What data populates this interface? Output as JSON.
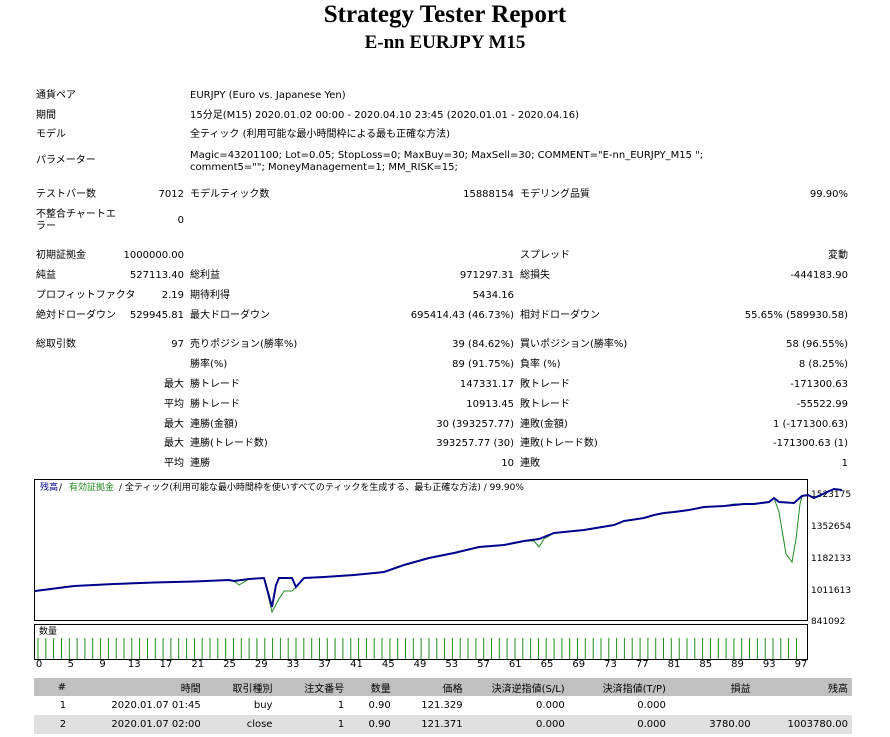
{
  "header": {
    "title": "Strategy Tester Report",
    "subtitle": "E-nn  EURJPY  M15"
  },
  "info": [
    {
      "label": "通貨ペア",
      "value": "EURJPY (Euro vs. Japanese Yen)"
    },
    {
      "label": "期間",
      "value": "15分足(M15) 2020.01.02 00:00 - 2020.04.10 23:45 (2020.01.01 - 2020.04.16)"
    },
    {
      "label": "モデル",
      "value": "全ティック (利用可能な最小時間枠による最も正確な方法)"
    },
    {
      "label": "パラメーター",
      "value": "Magic=43201100; Lot=0.05; StopLoss=0; MaxBuy=30; MaxSell=30; COMMENT=\"E-nn_EURJPY_M15 \"; comment5=\"\"; MoneyManagement=1; MM_RISK=15;"
    }
  ],
  "stats": {
    "bars_label": "テストバー数",
    "bars": "7012",
    "ticks_label": "モデルティック数",
    "ticks": "15888154",
    "quality_label": "モデリング品質",
    "quality": "99.90%",
    "mismatch_label": "不整合チャートエラー",
    "mismatch": "0",
    "deposit_label": "初期証拠金",
    "deposit": "1000000.00",
    "spread_label": "スプレッド",
    "spread": "変動",
    "net_label": "純益",
    "net": "527113.40",
    "gross_profit_label": "総利益",
    "gross_profit": "971297.31",
    "gross_loss_label": "総損失",
    "gross_loss": "-444183.90",
    "pf_label": "プロフィットファクタ",
    "pf": "2.19",
    "expected_label": "期待利得",
    "expected": "5434.16",
    "abs_dd_label": "絶対ドローダウン",
    "abs_dd": "529945.81",
    "max_dd_label": "最大ドローダウン",
    "max_dd": "695414.43 (46.73%)",
    "rel_dd_label": "相対ドローダウン",
    "rel_dd": "55.65% (589930.58)",
    "total_trades_label": "総取引数",
    "total_trades": "97",
    "short_label": "売りポジション(勝率%)",
    "short": "39 (84.62%)",
    "long_label": "買いポジション(勝率%)",
    "long": "58 (96.55%)",
    "win_pct_label": "勝率(%)",
    "win_pct": "89 (91.75%)",
    "loss_pct_label": "負率 (%)",
    "loss_pct": "8 (8.25%)",
    "max_word": "最大",
    "avg_word": "平均",
    "largest_win_label": "勝トレード",
    "largest_win": "147331.17",
    "largest_loss_label": "敗トレード",
    "largest_loss": "-171300.63",
    "avg_win_label": "勝トレード",
    "avg_win": "10913.45",
    "avg_loss_label": "敗トレード",
    "avg_loss": "-55522.99",
    "cons_wins_money_label": "連勝(金額)",
    "cons_wins_money": "30 (393257.77)",
    "cons_loss_money_label": "連敗(金額)",
    "cons_loss_money": "1 (-171300.63)",
    "cons_wins_count_label": "連勝(トレード数)",
    "cons_wins_count": "393257.77 (30)",
    "cons_loss_count_label": "連敗(トレード数)",
    "cons_loss_count": "-171300.63 (1)",
    "avg_cons_wins_label": "連勝",
    "avg_cons_wins": "10",
    "avg_cons_loss_label": "連敗",
    "avg_cons_loss": "1"
  },
  "chart": {
    "legend_balance": "残高",
    "legend_sep": " / ",
    "legend_equity": "有効証拠金",
    "legend_rest": " / 全ティック(利用可能な最小時間枠を使いすべてのティックを生成する、最も正確な方法) / 99.90%",
    "volume_label": "数量",
    "colors": {
      "balance": "#00008b",
      "equity": "#228b22",
      "volume": "#228b22"
    },
    "y_ticks": [
      "1523175",
      "1352654",
      "1182133",
      "1011613",
      "841092"
    ],
    "x_ticks": [
      "0",
      "5",
      "9",
      "13",
      "17",
      "21",
      "25",
      "29",
      "33",
      "37",
      "41",
      "45",
      "49",
      "53",
      "57",
      "61",
      "65",
      "69",
      "73",
      "77",
      "81",
      "85",
      "89",
      "93",
      "97"
    ]
  },
  "trades": {
    "columns": [
      "#",
      "時間",
      "取引種別",
      "注文番号",
      "数量",
      "価格",
      "決済逆指値(S/L)",
      "決済指値(T/P)",
      "損益",
      "残高"
    ],
    "rows": [
      [
        "1",
        "2020.01.07 01:45",
        "buy",
        "1",
        "0.90",
        "121.329",
        "0.000",
        "0.000",
        "",
        ""
      ],
      [
        "2",
        "2020.01.07 02:00",
        "close",
        "1",
        "0.90",
        "121.371",
        "0.000",
        "0.000",
        "3780.00",
        "1003780.00"
      ]
    ]
  }
}
